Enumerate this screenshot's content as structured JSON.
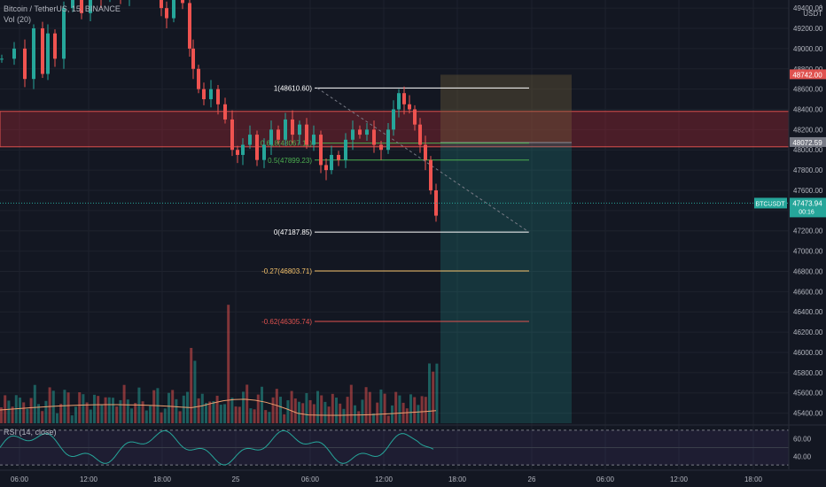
{
  "header": {
    "title": "Bitcoin / TetherUS, 15, BINANCE",
    "volume": "Vol (20)",
    "rsi": "RSI (14, close)"
  },
  "axis_corner": {
    "currency": "USDT",
    "arrow": "↓"
  },
  "colors": {
    "background": "#131722",
    "up": "#26a69a",
    "down": "#ef5350",
    "grid": "#1e222d",
    "axis_text": "#b2b5be",
    "fib_zero": "#ffffff",
    "fib_mid": "#4caf50",
    "fib_ext1": "#f5c26b",
    "fib_ext2": "#e0524f",
    "zone_fill": "rgba(178,40,51,0.35)",
    "target_fill": "rgba(38,166,154,0.22)",
    "stop_fill": "rgba(120,100,60,0.35)",
    "rsi_line": "#26a69a",
    "ma_line": "#f0a070"
  },
  "chart_data": {
    "type": "candlestick",
    "symbol": "BTCUSDT",
    "interval": "15",
    "exchange": "BINANCE",
    "y_ticks": [
      45400,
      45600,
      45800,
      46000,
      46200,
      46400,
      46600,
      46800,
      47000,
      47200,
      47400,
      47600,
      47800,
      48000,
      48200,
      48400,
      48600,
      48800,
      49000,
      49200,
      49400
    ],
    "ylim": [
      45300,
      49480
    ],
    "x_ticks": [
      "06:00",
      "12:00",
      "18:00",
      "25",
      "06:00",
      "12:00",
      "18:00",
      "26",
      "06:00",
      "12:00",
      "18:00"
    ],
    "price_path": [
      [
        0,
        48900
      ],
      [
        14,
        49000
      ],
      [
        26,
        48700
      ],
      [
        36,
        49200
      ],
      [
        46,
        48750
      ],
      [
        52,
        49150
      ],
      [
        60,
        48900
      ],
      [
        70,
        49400
      ],
      [
        80,
        49600
      ],
      [
        90,
        49350
      ],
      [
        100,
        49600
      ],
      [
        112,
        49500
      ],
      [
        122,
        49700
      ],
      [
        134,
        49500
      ],
      [
        144,
        49800
      ],
      [
        156,
        49600
      ],
      [
        166,
        49700
      ],
      [
        174,
        49550
      ],
      [
        180,
        49400
      ],
      [
        186,
        49300
      ],
      [
        194,
        49550
      ],
      [
        204,
        49450
      ],
      [
        212,
        49000
      ],
      [
        216,
        48800
      ],
      [
        222,
        48600
      ],
      [
        228,
        48500
      ],
      [
        236,
        48600
      ],
      [
        244,
        48450
      ],
      [
        252,
        48300
      ],
      [
        260,
        48000
      ],
      [
        266,
        47950
      ],
      [
        272,
        48050
      ],
      [
        280,
        48150
      ],
      [
        288,
        47900
      ],
      [
        296,
        48050
      ],
      [
        304,
        48200
      ],
      [
        312,
        48100
      ],
      [
        320,
        48300
      ],
      [
        328,
        48150
      ],
      [
        336,
        48250
      ],
      [
        344,
        48050
      ],
      [
        352,
        48150
      ],
      [
        360,
        47850
      ],
      [
        366,
        47800
      ],
      [
        372,
        47950
      ],
      [
        380,
        47900
      ],
      [
        388,
        48100
      ],
      [
        396,
        48200
      ],
      [
        404,
        48150
      ],
      [
        412,
        48200
      ],
      [
        420,
        48050
      ],
      [
        428,
        48000
      ],
      [
        436,
        48200
      ],
      [
        442,
        48400
      ],
      [
        448,
        48560
      ],
      [
        454,
        48450
      ],
      [
        460,
        48400
      ],
      [
        466,
        48250
      ],
      [
        472,
        48050
      ],
      [
        478,
        47900
      ],
      [
        484,
        47600
      ],
      [
        490,
        47350
      ]
    ],
    "volume_bars_note": "volume histogram below price with MA(20) line",
    "annotations": {
      "fib_levels": [
        {
          "ratio": "1",
          "price": 48610.6,
          "label": "1(48610.60)"
        },
        {
          "ratio": "0.618",
          "price": 48067.11,
          "label": "0.618(48067.11)"
        },
        {
          "ratio": "0.5",
          "price": 47899.23,
          "label": "0.5(47899.23)"
        },
        {
          "ratio": "0",
          "price": 47187.85,
          "label": "0(47187.85)"
        },
        {
          "ratio": "-0.27",
          "price": 46803.71,
          "label": "-0.27(46803.71)"
        },
        {
          "ratio": "-0.62",
          "price": 46305.74,
          "label": "-0.62(46305.74)"
        }
      ],
      "resistance_zone": [
        48030,
        48380
      ],
      "short_position": {
        "entry": 48072.59,
        "stop": 48742.0,
        "target": 45300
      }
    },
    "price_labels": [
      {
        "text": "48742.00",
        "price": 48742.0,
        "kind": "stop"
      },
      {
        "text": "48072.59",
        "price": 48072.59,
        "kind": "entry"
      },
      {
        "text": "BTCUSDT",
        "price": 47473.94,
        "kind": "symbol"
      },
      {
        "text": "47473.94",
        "price": 47473.94,
        "kind": "last"
      },
      {
        "text": "00:16",
        "price": 47473.94,
        "kind": "countdown"
      }
    ],
    "rsi": {
      "ticks": [
        40.0,
        60.0
      ],
      "band": [
        30,
        70
      ],
      "ylim": [
        25,
        75
      ]
    }
  }
}
